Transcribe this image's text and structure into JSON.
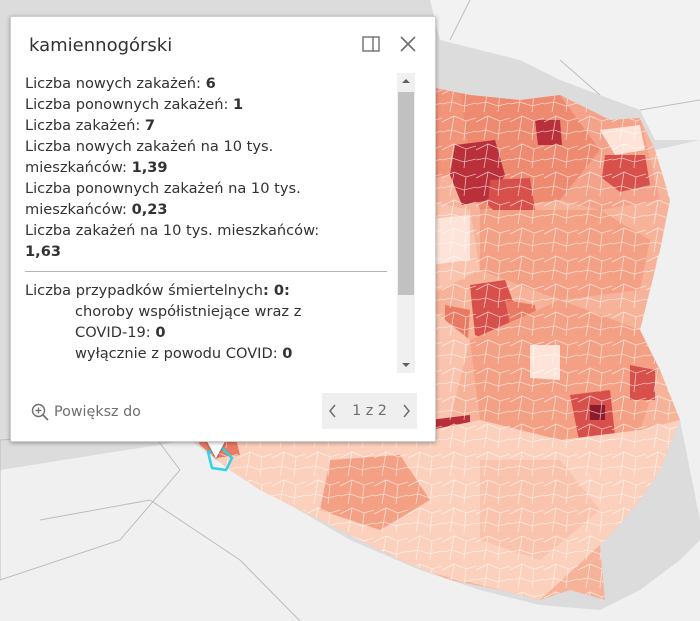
{
  "popup": {
    "title": "kamiennogórski",
    "lines": [
      {
        "label": "Liczba nowych zakażeń:",
        "value": "6"
      },
      {
        "label": "Liczba ponownych zakażeń:",
        "value": "1"
      },
      {
        "label": "Liczba zakażeń:",
        "value": "7"
      },
      {
        "label": "Liczba nowych zakażeń na 10 tys.",
        "label2": "mieszkańców:",
        "value": "1,39"
      },
      {
        "label": "Liczba ponownych zakażeń na 10 tys.",
        "label2": "mieszkańców:",
        "value": "0,23"
      },
      {
        "label": "Liczba zakażeń na 10 tys. mieszkańców:",
        "value": "1,63"
      }
    ],
    "deaths": {
      "label": "Liczba przypadków śmiertelnych",
      "value": ": 0:",
      "comorbid_label": "choroby współistniejące wraz z",
      "comorbid_label2": "COVID-19:",
      "comorbid_value": "0",
      "covid_only_label": "wyłącznie z powodu COVID:",
      "covid_only_value": "0"
    },
    "zoom_label": "Powiększ do",
    "pager_label": "1 z 2"
  },
  "icons": {
    "dock": "dock-icon",
    "close": "close-icon",
    "zoom": "zoom-in-icon",
    "prev": "chevron-left-icon",
    "next": "chevron-right-icon"
  },
  "colors": {
    "map_bg": "#dcdcdc",
    "land_outside": "#f2f2f2",
    "border_line": "#ffffff",
    "choropleth": [
      "#fde3d8",
      "#f9c3ad",
      "#f4a085",
      "#ea7a63",
      "#d8504b",
      "#b9303a",
      "#8f1a2b"
    ],
    "highlight": "#2fd3e6"
  }
}
